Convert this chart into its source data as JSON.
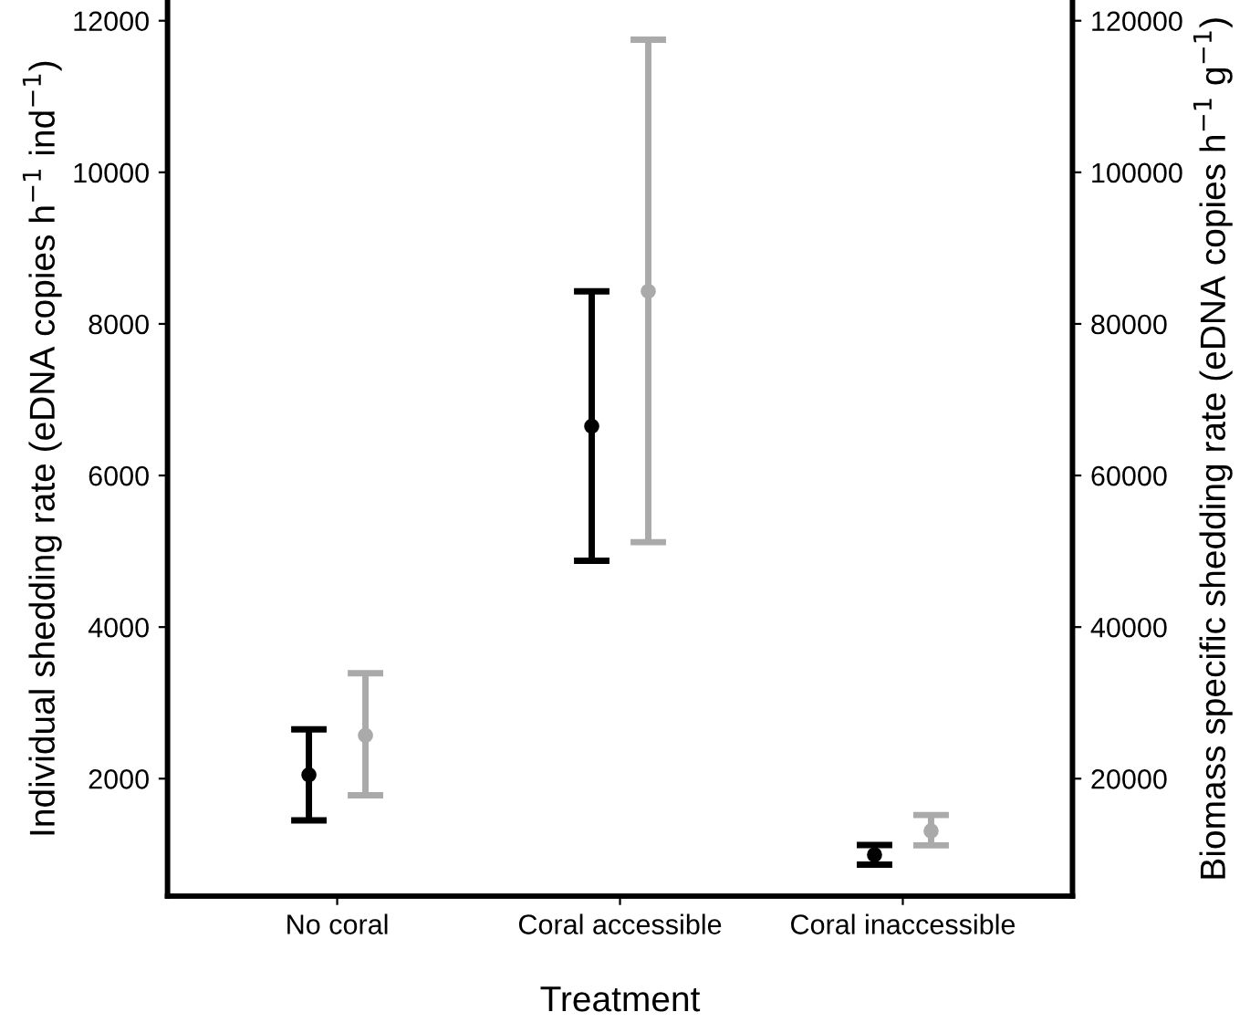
{
  "chart_data": {
    "type": "scatter",
    "xlabel": "Treatment",
    "ylabel": "Individual shedding rate (eDNA copies h$^{−1}$ ind$^{−1}$)",
    "y2label": "Biomass specific shedding rate (eDNA copies h$^{−1}$ g$^{−1}$)",
    "categories": [
      "No coral",
      "Coral accessible",
      "Coral inaccessible"
    ],
    "series": [
      {
        "color": "#000000",
        "values": [
          2050,
          6650,
          995
        ],
        "errors": [
          [
            1450,
            2650
          ],
          [
            4875,
            8430
          ],
          [
            865,
            1125
          ]
        ]
      },
      {
        "color": "#aaaaaa",
        "axis": "y2",
        "values": [
          25700,
          84300,
          13100
        ],
        "errors": [
          [
            17800,
            33900
          ],
          [
            51200,
            117500
          ],
          [
            11200,
            15200
          ]
        ]
      }
    ],
    "ylim": [
      450,
      12260
    ],
    "yticks": [
      2000,
      4000,
      6000,
      8000,
      10000,
      12000
    ],
    "y2lim": [
      4500,
      122600
    ],
    "y2ticks": [
      20000,
      40000,
      60000,
      80000,
      100000,
      120000
    ],
    "marker": "circle",
    "grid": false,
    "legend": false
  }
}
